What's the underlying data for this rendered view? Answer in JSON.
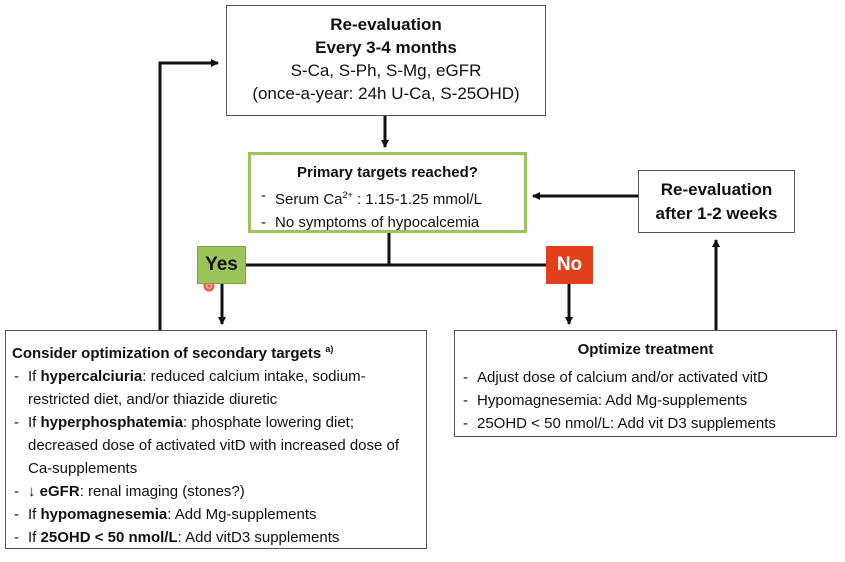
{
  "reeval_top": {
    "title1": "Re-evaluation",
    "title2": "Every 3-4 months",
    "line1": "S-Ca, S-Ph, S-Mg, eGFR",
    "line2": "(once-a-year: 24h U-Ca, S-25OHD)"
  },
  "primary": {
    "title": "Primary targets reached?",
    "item1_prefix": "Serum Ca",
    "item1_sup": "2+",
    "item1_suffix": " : 1.15-1.25 mmol/L",
    "item2": "No symptoms of hypocalcemia"
  },
  "reeval_right": {
    "line1": "Re-evaluation",
    "line2": "after 1-2 weeks"
  },
  "yes_label": "Yes",
  "no_label": "No",
  "secondary": {
    "title": "Consider optimization of secondary targets",
    "title_sup": "a)",
    "items": [
      {
        "pre": "If ",
        "bold": "hypercalciuria",
        "post": ": reduced calcium intake, sodium-restricted diet, and/or thiazide diuretic"
      },
      {
        "pre": "If ",
        "bold": "hyperphosphatemia",
        "post": ": phosphate lowering diet; decreased dose of activated vitD with increased dose of Ca-supplements"
      },
      {
        "pre": "↓ ",
        "bold": "eGFR",
        "post": ": renal imaging (stones?)"
      },
      {
        "pre": "If ",
        "bold": "hypomagnesemia",
        "post": ": Add Mg-supplements"
      },
      {
        "pre": "If ",
        "bold": "25OHD < 50 nmol/L",
        "post": ": Add vitD3 supplements"
      }
    ]
  },
  "optimize": {
    "title": "Optimize treatment",
    "items": [
      "Adjust dose of calcium and/or activated vitD",
      "Hypomagnesemia: Add Mg-supplements",
      "25OHD < 50 nmol/L: Add vit D3 supplements"
    ]
  },
  "colors": {
    "yes_fill": "#9bc45a",
    "no_fill": "#e2401c",
    "green_border": "#9bc45a",
    "pointer_marker": "#e8553f"
  }
}
